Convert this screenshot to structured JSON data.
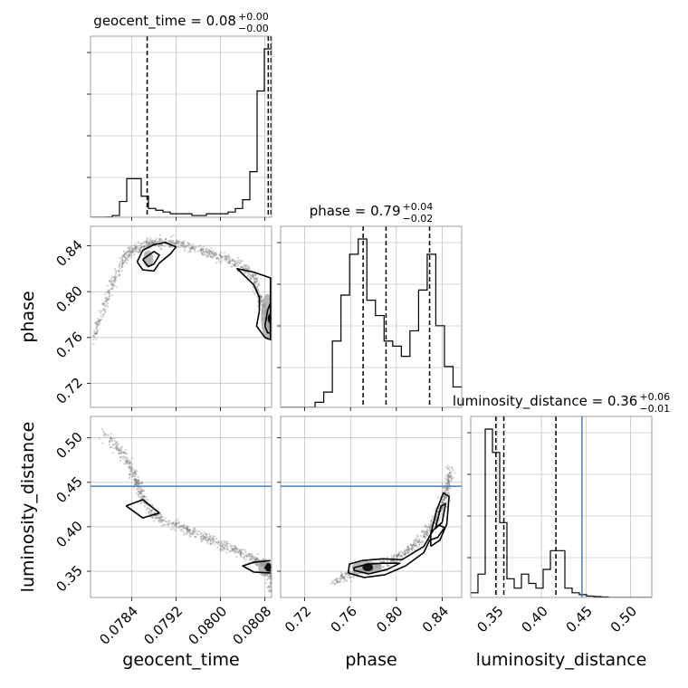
{
  "chart_data": {
    "type": "corner",
    "parameters": [
      "geocent_time",
      "phase",
      "luminosity_distance"
    ],
    "axis_labels": {
      "geocent_time": "geocent_time",
      "phase": "phase",
      "luminosity_distance": "luminosity_distance"
    },
    "ranges": {
      "geocent_time": [
        0.07766,
        0.08092
      ],
      "phase": [
        0.699,
        0.857
      ],
      "luminosity_distance": [
        0.3205,
        0.5241
      ]
    },
    "ticks": {
      "geocent_time": {
        "values": [
          0.0784,
          0.0792,
          0.08,
          0.0808
        ],
        "labels": [
          "0.0784",
          "0.0792",
          "0.0800",
          "0.0808"
        ]
      },
      "phase": {
        "values": [
          0.72,
          0.76,
          0.8,
          0.84
        ],
        "labels": [
          "0.72",
          "0.76",
          "0.80",
          "0.84"
        ]
      },
      "luminosity_distance": {
        "values": [
          0.35,
          0.4,
          0.45,
          0.5
        ],
        "labels": [
          "0.35",
          "0.40",
          "0.45",
          "0.50"
        ]
      }
    },
    "titles": [
      {
        "parameter": "geocent_time",
        "text": "geocent_time = 0.08",
        "sup": "+0.00",
        "sub": "−0.00"
      },
      {
        "parameter": "phase",
        "text": "phase = 0.79",
        "sup": "+0.04",
        "sub": "−0.02"
      },
      {
        "parameter": "luminosity_distance",
        "text": "luminosity_distance = 0.36",
        "sup": "+0.06",
        "sub": "−0.01"
      }
    ],
    "quantiles": {
      "geocent_time": [
        0.07868,
        0.08086,
        0.08091
      ],
      "phase": [
        0.771,
        0.791,
        0.829
      ],
      "luminosity_distance": [
        0.3487,
        0.3577,
        0.4163
      ]
    },
    "truths": {
      "luminosity_distance": 0.4456
    },
    "histograms": {
      "geocent_time": {
        "range": [
          0.07766,
          0.08092
        ],
        "counts": [
          0,
          0,
          0.1,
          1,
          9,
          22,
          22,
          12,
          5,
          4,
          3,
          2,
          2,
          2,
          1,
          1,
          2,
          2,
          2,
          3,
          5,
          10,
          26,
          72,
          96
        ]
      },
      "phase": {
        "range": [
          0.699,
          0.857
        ],
        "counts": [
          0,
          0,
          0,
          0,
          1,
          3,
          13,
          22,
          30,
          33,
          21,
          18,
          13,
          12,
          10,
          15,
          23,
          30,
          16,
          8,
          4
        ]
      },
      "luminosity_distance": {
        "range": [
          0.3205,
          0.5241
        ],
        "counts": [
          1,
          5,
          36,
          31,
          16,
          4,
          2,
          5,
          3,
          2,
          6,
          10,
          10,
          2,
          1,
          0.6,
          0.3,
          0.2,
          0.1,
          0,
          0,
          0,
          0,
          0,
          0
        ]
      }
    },
    "sample_paths": {
      "geocent_time|phase": [
        [
          0.0777,
          0.755
        ],
        [
          0.0779,
          0.788
        ],
        [
          0.0781,
          0.812
        ],
        [
          0.0783,
          0.831
        ],
        [
          0.0785,
          0.838
        ],
        [
          0.0787,
          0.842
        ],
        [
          0.0789,
          0.843
        ],
        [
          0.0792,
          0.842
        ],
        [
          0.0795,
          0.838
        ],
        [
          0.0798,
          0.834
        ],
        [
          0.0801,
          0.829
        ],
        [
          0.0804,
          0.822
        ],
        [
          0.0806,
          0.812
        ],
        [
          0.0807,
          0.795
        ],
        [
          0.08085,
          0.778
        ],
        [
          0.0809,
          0.765
        ]
      ],
      "geocent_time|luminosity_distance": [
        [
          0.0779,
          0.505
        ],
        [
          0.0782,
          0.485
        ],
        [
          0.0784,
          0.465
        ],
        [
          0.0785,
          0.45
        ],
        [
          0.0786,
          0.432
        ],
        [
          0.0788,
          0.412
        ],
        [
          0.0791,
          0.404
        ],
        [
          0.0794,
          0.396
        ],
        [
          0.0797,
          0.388
        ],
        [
          0.08,
          0.381
        ],
        [
          0.0803,
          0.373
        ],
        [
          0.0806,
          0.364
        ],
        [
          0.0808,
          0.358
        ],
        [
          0.0809,
          0.348
        ],
        [
          0.0809,
          0.33
        ]
      ],
      "phase|luminosity_distance": [
        [
          0.745,
          0.339
        ],
        [
          0.76,
          0.346
        ],
        [
          0.772,
          0.35
        ],
        [
          0.785,
          0.356
        ],
        [
          0.8,
          0.364
        ],
        [
          0.812,
          0.375
        ],
        [
          0.823,
          0.388
        ],
        [
          0.832,
          0.403
        ],
        [
          0.838,
          0.417
        ],
        [
          0.842,
          0.432
        ],
        [
          0.845,
          0.448
        ],
        [
          0.847,
          0.465
        ]
      ]
    },
    "density_blobs": {
      "geocent_time|phase": [
        {
          "cx": 0.0787,
          "cy": 0.8285,
          "rx": 9e-05,
          "ry": 0.0075,
          "level": 3
        },
        {
          "cx": 0.08085,
          "cy": 0.778,
          "rx": 0.00012,
          "ry": 0.02,
          "level": 3
        },
        {
          "cx": 0.0809,
          "cy": 0.7765,
          "rx": 5e-05,
          "ry": 0.0045,
          "level": 4
        }
      ],
      "geocent_time|luminosity_distance": [
        {
          "cx": 0.0808,
          "cy": 0.354,
          "rx": 0.00012,
          "ry": 0.01,
          "level": 3
        },
        {
          "cx": 0.08086,
          "cy": 0.3545,
          "rx": 5e-05,
          "ry": 0.005,
          "level": 4
        }
      ],
      "phase|luminosity_distance": [
        {
          "cx": 0.774,
          "cy": 0.3545,
          "rx": 0.013,
          "ry": 0.007,
          "level": 3
        },
        {
          "cx": 0.775,
          "cy": 0.3545,
          "rx": 0.0045,
          "ry": 0.0045,
          "level": 4
        }
      ]
    },
    "contours": {
      "geocent_time|phase": [
        [
          [
            0.0785,
            0.826
          ],
          [
            0.0786,
            0.819
          ],
          [
            0.0788,
            0.818
          ],
          [
            0.0789,
            0.825
          ],
          [
            0.0791,
            0.833
          ],
          [
            0.0792,
            0.839
          ],
          [
            0.079,
            0.843
          ],
          [
            0.0788,
            0.841
          ],
          [
            0.0786,
            0.836
          ],
          [
            0.0785,
            0.826
          ]
        ],
        [
          [
            0.0786,
            0.828
          ],
          [
            0.0787,
            0.822
          ],
          [
            0.0788,
            0.824
          ],
          [
            0.0789,
            0.832
          ],
          [
            0.0788,
            0.835
          ],
          [
            0.0786,
            0.828
          ]
        ],
        [
          [
            0.0807,
            0.783
          ],
          [
            0.08065,
            0.77
          ],
          [
            0.0808,
            0.76
          ],
          [
            0.0809,
            0.758
          ],
          [
            0.0809,
            0.812
          ],
          [
            0.0806,
            0.817
          ],
          [
            0.0803,
            0.82
          ],
          [
            0.0806,
            0.806
          ],
          [
            0.0807,
            0.795
          ],
          [
            0.0807,
            0.783
          ]
        ],
        [
          [
            0.0808,
            0.77
          ],
          [
            0.08085,
            0.764
          ],
          [
            0.0809,
            0.764
          ],
          [
            0.0809,
            0.79
          ],
          [
            0.08085,
            0.784
          ],
          [
            0.0808,
            0.77
          ]
        ]
      ],
      "geocent_time|luminosity_distance": [
        [
          [
            0.0783,
            0.4235
          ],
          [
            0.0786,
            0.4305
          ],
          [
            0.0789,
            0.4155
          ],
          [
            0.0786,
            0.41
          ],
          [
            0.0783,
            0.4235
          ]
        ],
        [
          [
            0.0809,
            0.362
          ],
          [
            0.0806,
            0.36
          ],
          [
            0.0804,
            0.356
          ],
          [
            0.0806,
            0.349
          ],
          [
            0.0809,
            0.348
          ]
        ],
        [
          [
            0.0809,
            0.358
          ],
          [
            0.0808,
            0.354
          ],
          [
            0.0809,
            0.35
          ]
        ]
      ],
      "phase|luminosity_distance": [
        [
          [
            0.758,
            0.348
          ],
          [
            0.772,
            0.343
          ],
          [
            0.79,
            0.346
          ],
          [
            0.808,
            0.356
          ],
          [
            0.824,
            0.371
          ],
          [
            0.829,
            0.385
          ],
          [
            0.836,
            0.388
          ],
          [
            0.842,
            0.399
          ],
          [
            0.837,
            0.402
          ],
          [
            0.832,
            0.396
          ],
          [
            0.824,
            0.378
          ],
          [
            0.805,
            0.363
          ],
          [
            0.788,
            0.364
          ],
          [
            0.77,
            0.362
          ],
          [
            0.759,
            0.358
          ],
          [
            0.758,
            0.348
          ]
        ],
        [
          [
            0.763,
            0.351
          ],
          [
            0.776,
            0.347
          ],
          [
            0.792,
            0.352
          ],
          [
            0.803,
            0.359
          ],
          [
            0.788,
            0.359
          ],
          [
            0.775,
            0.358
          ],
          [
            0.763,
            0.354
          ],
          [
            0.763,
            0.351
          ]
        ],
        [
          [
            0.83,
            0.378
          ],
          [
            0.838,
            0.385
          ],
          [
            0.844,
            0.403
          ],
          [
            0.846,
            0.434
          ],
          [
            0.841,
            0.438
          ],
          [
            0.835,
            0.418
          ],
          [
            0.83,
            0.392
          ],
          [
            0.83,
            0.378
          ]
        ],
        [
          [
            0.834,
            0.398
          ],
          [
            0.84,
            0.405
          ],
          [
            0.843,
            0.426
          ],
          [
            0.839,
            0.423
          ],
          [
            0.834,
            0.398
          ]
        ]
      ]
    },
    "grid": true,
    "colors": {
      "hist_line": "#000000",
      "quantile_line": "#000000",
      "truth": "#4682b4",
      "grid": "#b0b0b0",
      "points": "#777777",
      "density_light": "#d8d8d8",
      "density_mid": "#9a9a9a",
      "density_dark": "#111111"
    }
  }
}
